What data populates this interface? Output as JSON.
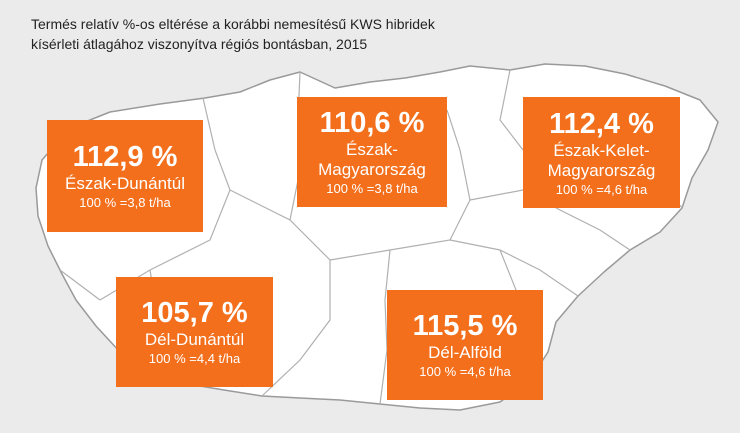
{
  "title": [
    "Termés relatív %-os eltérése a korábbi nemesítésű KWS hibridek",
    "kísérleti átlagához viszonyítva régiós bontásban, 2015"
  ],
  "regions": [
    {
      "value": "112,9 %",
      "name": "Észak-Dunántúl",
      "base": "100 % =3,8 t/ha"
    },
    {
      "value": "110,6 %",
      "name": "Észak-Magyarország",
      "base": "100 % =3,8 t/ha"
    },
    {
      "value": "112,4 %",
      "name": "Észak-Kelet-Magyarország",
      "base": "100 % =4,6 t/ha"
    },
    {
      "value": "105,7 %",
      "name": "Dél-Dunántúl",
      "base": "100 % =4,4 t/ha"
    },
    {
      "value": "115,5 %",
      "name": "Dél-Alföld",
      "base": "100 % =4,6 t/ha"
    }
  ]
}
